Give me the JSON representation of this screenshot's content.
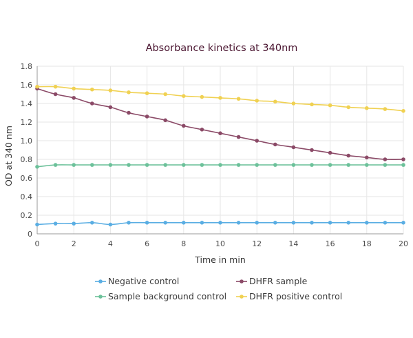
{
  "chart_data": {
    "type": "line",
    "title": "Absorbance kinetics at 340nm",
    "xlabel": "Time in min",
    "ylabel": "OD at 340 nm",
    "xlim": [
      0,
      20
    ],
    "ylim": [
      0,
      1.8
    ],
    "x_ticks": [
      0,
      2,
      4,
      6,
      8,
      10,
      12,
      14,
      16,
      18,
      20
    ],
    "y_ticks": [
      0,
      0.2,
      0.4,
      0.6,
      0.8,
      1.0,
      1.2,
      1.4,
      1.6,
      1.8
    ],
    "x_tick_labels": [
      "0",
      "2",
      "4",
      "6",
      "8",
      "10",
      "12",
      "14",
      "16",
      "18",
      "20"
    ],
    "y_tick_labels": [
      "0",
      "0.2",
      "0.4",
      "0.6",
      "0.8",
      "1.0",
      "1.2",
      "1.4",
      "1.6",
      "1.8"
    ],
    "grid": true,
    "legend_position": "bottom",
    "x": [
      0,
      1,
      2,
      3,
      4,
      5,
      6,
      7,
      8,
      9,
      10,
      11,
      12,
      13,
      14,
      15,
      16,
      17,
      18,
      19,
      20
    ],
    "series": [
      {
        "name": "Negative control",
        "color": "#5aaee3",
        "values": [
          0.1,
          0.11,
          0.11,
          0.12,
          0.1,
          0.12,
          0.12,
          0.12,
          0.12,
          0.12,
          0.12,
          0.12,
          0.12,
          0.12,
          0.12,
          0.12,
          0.12,
          0.12,
          0.12,
          0.12,
          0.12
        ]
      },
      {
        "name": "DHFR sample",
        "color": "#8b4a67",
        "values": [
          1.56,
          1.5,
          1.46,
          1.4,
          1.36,
          1.3,
          1.26,
          1.22,
          1.16,
          1.12,
          1.08,
          1.04,
          1.0,
          0.96,
          0.93,
          0.9,
          0.87,
          0.84,
          0.82,
          0.8,
          0.8
        ]
      },
      {
        "name": "Sample background control",
        "color": "#6cc19a",
        "values": [
          0.72,
          0.74,
          0.74,
          0.74,
          0.74,
          0.74,
          0.74,
          0.74,
          0.74,
          0.74,
          0.74,
          0.74,
          0.74,
          0.74,
          0.74,
          0.74,
          0.74,
          0.74,
          0.74,
          0.74,
          0.74
        ]
      },
      {
        "name": "DHFR positive control",
        "color": "#f0d152",
        "values": [
          1.58,
          1.58,
          1.56,
          1.55,
          1.54,
          1.52,
          1.51,
          1.5,
          1.48,
          1.47,
          1.46,
          1.45,
          1.43,
          1.42,
          1.4,
          1.39,
          1.38,
          1.36,
          1.35,
          1.34,
          1.32
        ]
      }
    ]
  }
}
